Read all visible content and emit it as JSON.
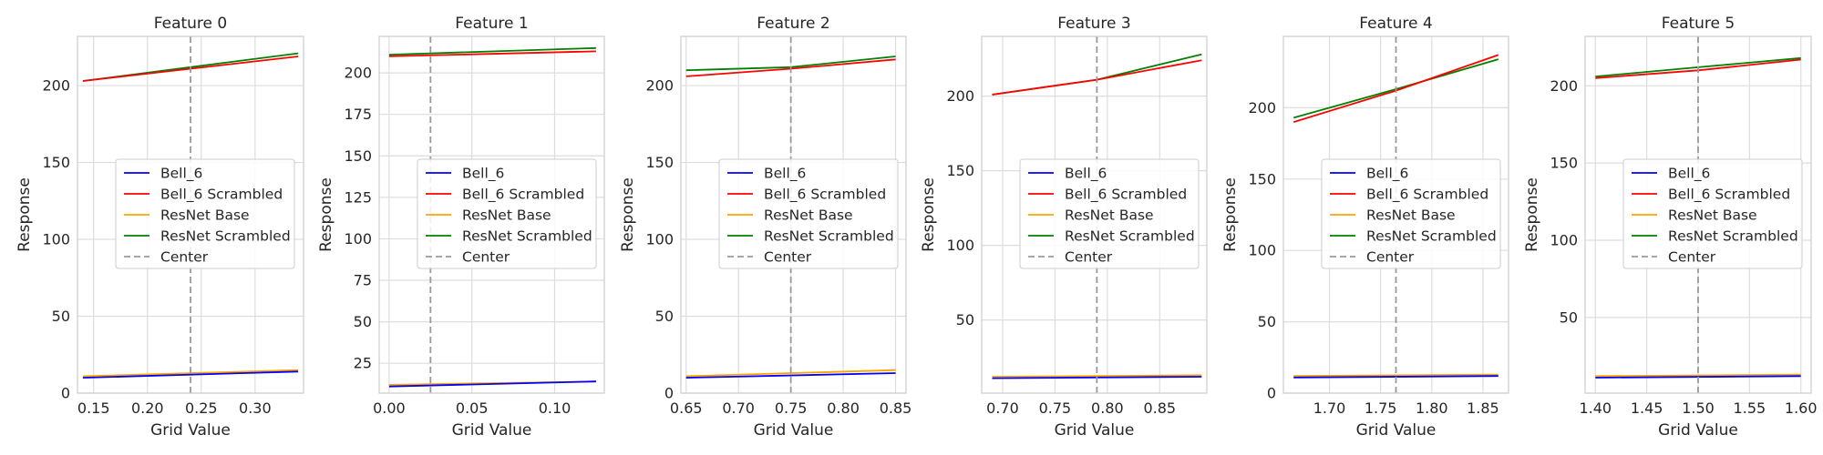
{
  "chart_data": [
    {
      "type": "line",
      "title": "Feature 0",
      "xlabel": "Grid Value",
      "ylabel": "Response",
      "xlim": [
        0.135,
        0.345
      ],
      "ylim": [
        0,
        232
      ],
      "xticks": [
        0.15,
        0.2,
        0.25,
        0.3
      ],
      "xtick_labels": [
        "0.15",
        "0.20",
        "0.25",
        "0.30"
      ],
      "yticks": [
        0,
        50,
        100,
        150,
        200
      ],
      "ytick_labels": [
        "0",
        "50",
        "100",
        "150",
        "200"
      ],
      "center": 0.24,
      "series": [
        {
          "name": "Bell_6",
          "color": "#0000ff",
          "x": [
            0.14,
            0.34
          ],
          "y": [
            10,
            14
          ]
        },
        {
          "name": "Bell_6 Scrambled",
          "color": "#ff0000",
          "x": [
            0.14,
            0.24,
            0.34
          ],
          "y": [
            203,
            211,
            219
          ]
        },
        {
          "name": "ResNet Base",
          "color": "#ffa500",
          "x": [
            0.14,
            0.34
          ],
          "y": [
            11,
            15
          ]
        },
        {
          "name": "ResNet Scrambled",
          "color": "#008000",
          "x": [
            0.14,
            0.24,
            0.34
          ],
          "y": [
            203,
            212,
            221
          ]
        }
      ],
      "legend": "center-right"
    },
    {
      "type": "line",
      "title": "Feature 1",
      "xlabel": "Grid Value",
      "ylabel": "Response",
      "xlim": [
        -0.006,
        0.13
      ],
      "ylim": [
        7,
        222
      ],
      "xticks": [
        0.0,
        0.05,
        0.1
      ],
      "xtick_labels": [
        "0.00",
        "0.05",
        "0.10"
      ],
      "yticks": [
        25,
        50,
        75,
        100,
        125,
        150,
        175,
        200
      ],
      "ytick_labels": [
        "25",
        "50",
        "75",
        "100",
        "125",
        "150",
        "175",
        "200"
      ],
      "center": 0.025,
      "series": [
        {
          "name": "Bell_6",
          "color": "#0000ff",
          "x": [
            0.0,
            0.125
          ],
          "y": [
            11,
            14
          ]
        },
        {
          "name": "Bell_6 Scrambled",
          "color": "#ff0000",
          "x": [
            0.0,
            0.125
          ],
          "y": [
            210,
            213
          ]
        },
        {
          "name": "ResNet Base",
          "color": "#ffa500",
          "x": [
            0.0,
            0.125
          ],
          "y": [
            12,
            14
          ]
        },
        {
          "name": "ResNet Scrambled",
          "color": "#008000",
          "x": [
            0.0,
            0.125
          ],
          "y": [
            211,
            215
          ]
        }
      ],
      "legend": "center-right"
    },
    {
      "type": "line",
      "title": "Feature 2",
      "xlabel": "Grid Value",
      "ylabel": "Response",
      "xlim": [
        0.645,
        0.86
      ],
      "ylim": [
        0,
        232
      ],
      "xticks": [
        0.65,
        0.7,
        0.75,
        0.8,
        0.85
      ],
      "xtick_labels": [
        "0.65",
        "0.70",
        "0.75",
        "0.80",
        "0.85"
      ],
      "yticks": [
        0,
        50,
        100,
        150,
        200
      ],
      "ytick_labels": [
        "0",
        "50",
        "100",
        "150",
        "200"
      ],
      "center": 0.75,
      "series": [
        {
          "name": "Bell_6",
          "color": "#0000ff",
          "x": [
            0.65,
            0.85
          ],
          "y": [
            10,
            13
          ]
        },
        {
          "name": "Bell_6 Scrambled",
          "color": "#ff0000",
          "x": [
            0.65,
            0.75,
            0.85
          ],
          "y": [
            206,
            211,
            217
          ]
        },
        {
          "name": "ResNet Base",
          "color": "#ffa500",
          "x": [
            0.65,
            0.85
          ],
          "y": [
            11,
            15
          ]
        },
        {
          "name": "ResNet Scrambled",
          "color": "#008000",
          "x": [
            0.65,
            0.75,
            0.85
          ],
          "y": [
            210,
            212,
            219
          ]
        }
      ],
      "legend": "center-right"
    },
    {
      "type": "line",
      "title": "Feature 3",
      "xlabel": "Grid Value",
      "ylabel": "Response",
      "xlim": [
        0.68,
        0.895
      ],
      "ylim": [
        1,
        240
      ],
      "xticks": [
        0.7,
        0.75,
        0.8,
        0.85
      ],
      "xtick_labels": [
        "0.70",
        "0.75",
        "0.80",
        "0.85"
      ],
      "yticks": [
        50,
        100,
        150,
        200
      ],
      "ytick_labels": [
        "50",
        "100",
        "150",
        "200"
      ],
      "center": 0.79,
      "series": [
        {
          "name": "Bell_6",
          "color": "#0000ff",
          "x": [
            0.69,
            0.89
          ],
          "y": [
            11,
            12
          ]
        },
        {
          "name": "Bell_6 Scrambled",
          "color": "#ff0000",
          "x": [
            0.69,
            0.79,
            0.89
          ],
          "y": [
            201,
            211,
            224
          ]
        },
        {
          "name": "ResNet Base",
          "color": "#ffa500",
          "x": [
            0.69,
            0.89
          ],
          "y": [
            12,
            13
          ]
        },
        {
          "name": "ResNet Scrambled",
          "color": "#008000",
          "x": [
            0.69,
            0.79,
            0.89
          ],
          "y": [
            201,
            211,
            228
          ]
        }
      ],
      "legend": "center-right"
    },
    {
      "type": "line",
      "title": "Feature 4",
      "xlabel": "Grid Value",
      "ylabel": "Response",
      "xlim": [
        1.655,
        1.875
      ],
      "ylim": [
        0,
        250
      ],
      "xticks": [
        1.7,
        1.75,
        1.8,
        1.85
      ],
      "xtick_labels": [
        "1.70",
        "1.75",
        "1.80",
        "1.85"
      ],
      "yticks": [
        0,
        50,
        100,
        150,
        200
      ],
      "ytick_labels": [
        "0",
        "50",
        "100",
        "150",
        "200"
      ],
      "center": 1.765,
      "series": [
        {
          "name": "Bell_6",
          "color": "#0000ff",
          "x": [
            1.665,
            1.865
          ],
          "y": [
            11,
            12
          ]
        },
        {
          "name": "Bell_6 Scrambled",
          "color": "#ff0000",
          "x": [
            1.665,
            1.765,
            1.865
          ],
          "y": [
            190,
            212,
            237
          ]
        },
        {
          "name": "ResNet Base",
          "color": "#ffa500",
          "x": [
            1.665,
            1.865
          ],
          "y": [
            12,
            13
          ]
        },
        {
          "name": "ResNet Scrambled",
          "color": "#008000",
          "x": [
            1.665,
            1.765,
            1.865
          ],
          "y": [
            193,
            213,
            234
          ]
        }
      ],
      "legend": "center-right"
    },
    {
      "type": "line",
      "title": "Feature 5",
      "xlabel": "Grid Value",
      "ylabel": "Response",
      "xlim": [
        1.39,
        1.61
      ],
      "ylim": [
        1,
        232
      ],
      "xticks": [
        1.4,
        1.45,
        1.5,
        1.55,
        1.6
      ],
      "xtick_labels": [
        "1.40",
        "1.45",
        "1.50",
        "1.55",
        "1.60"
      ],
      "yticks": [
        50,
        100,
        150,
        200
      ],
      "ytick_labels": [
        "50",
        "100",
        "150",
        "200"
      ],
      "center": 1.5,
      "series": [
        {
          "name": "Bell_6",
          "color": "#0000ff",
          "x": [
            1.4,
            1.6
          ],
          "y": [
            11,
            12
          ]
        },
        {
          "name": "Bell_6 Scrambled",
          "color": "#ff0000",
          "x": [
            1.4,
            1.5,
            1.6
          ],
          "y": [
            205,
            210,
            217
          ]
        },
        {
          "name": "ResNet Base",
          "color": "#ffa500",
          "x": [
            1.4,
            1.6
          ],
          "y": [
            12,
            13
          ]
        },
        {
          "name": "ResNet Scrambled",
          "color": "#008000",
          "x": [
            1.4,
            1.5,
            1.6
          ],
          "y": [
            206,
            212,
            218
          ]
        }
      ],
      "legend": "center-right"
    }
  ],
  "legend_entries": [
    "Bell_6",
    "Bell_6 Scrambled",
    "ResNet Base",
    "ResNet Scrambled",
    "Center"
  ],
  "center_color": "#999999"
}
